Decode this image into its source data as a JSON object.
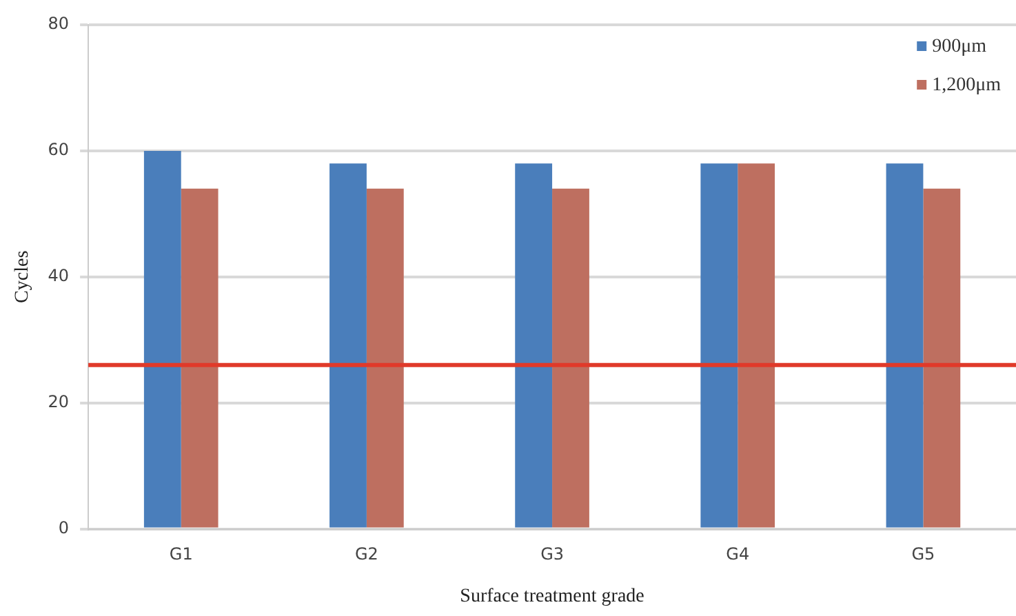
{
  "chart_data": {
    "type": "bar",
    "xlabel": "Surface treatment grade",
    "ylabel": "Cycles",
    "categories": [
      "G1",
      "G2",
      "G3",
      "G4",
      "G5"
    ],
    "series": [
      {
        "name": "900μm",
        "color": "#4a7ebb",
        "values": [
          60,
          58,
          58,
          58,
          58
        ]
      },
      {
        "name": "1,200μm",
        "color": "#be6f60",
        "values": [
          54,
          54,
          54,
          58,
          54
        ]
      }
    ],
    "ylim": [
      0,
      80
    ],
    "yticks": [
      0,
      20,
      40,
      60,
      80
    ],
    "grid": "y",
    "legend": "top right",
    "ref_lines": [
      {
        "axis": "y",
        "value": 26,
        "color": "#e03a2a",
        "line_style": "solid"
      }
    ]
  }
}
